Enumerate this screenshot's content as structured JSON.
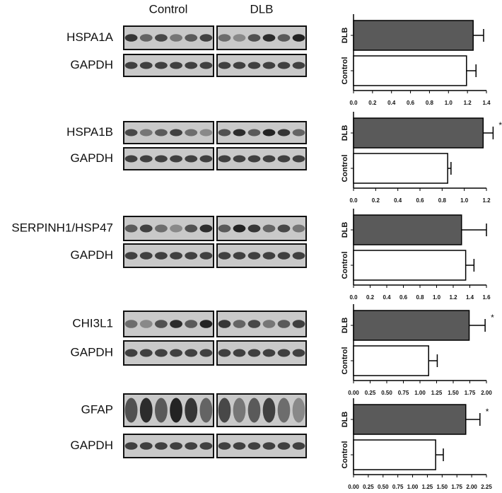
{
  "blots": {
    "groups": [
      "Control",
      "DLB"
    ],
    "rows": [
      "HSPA1A",
      "GAPDH",
      "HSPA1B",
      "GAPDH",
      "SERPINH1/HSP47",
      "GAPDH",
      "CHI3L1",
      "GAPDH",
      "GFAP",
      "GAPDH"
    ]
  },
  "chart_data": [
    {
      "type": "bar",
      "orientation": "horizontal",
      "categories": [
        "DLB",
        "Control"
      ],
      "values": [
        1.26,
        1.19
      ],
      "errors": [
        0.11,
        0.1
      ],
      "colors": [
        "#5a5a5a",
        "#ffffff"
      ],
      "xlim": [
        0,
        1.4
      ],
      "xticks": [
        {
          "value": 0,
          "label": "0.0"
        },
        0.2,
        0.4,
        0.6,
        0.8,
        {
          "value": 1,
          "label": "1.0"
        },
        1.2,
        1.4
      ]
    },
    {
      "type": "bar",
      "orientation": "horizontal",
      "categories": [
        "DLB",
        "Control"
      ],
      "values": [
        1.17,
        0.85
      ],
      "errors": [
        0.09,
        0.03
      ],
      "colors": [
        "#5a5a5a",
        "#ffffff"
      ],
      "annotation": "*",
      "xlim": [
        0,
        1.2
      ],
      "xticks": [
        {
          "value": 0,
          "label": "0.0"
        },
        0.2,
        0.4,
        0.6,
        0.8,
        {
          "value": 1,
          "label": "1.0"
        },
        1.2
      ]
    },
    {
      "type": "bar",
      "orientation": "horizontal",
      "categories": [
        "DLB",
        "Control"
      ],
      "values": [
        1.3,
        1.35
      ],
      "errors": [
        0.3,
        0.1
      ],
      "colors": [
        "#5a5a5a",
        "#ffffff"
      ],
      "xlim": [
        0,
        1.6
      ],
      "xticks": [
        {
          "value": 0,
          "label": "0.0"
        },
        0.2,
        0.4,
        0.6,
        0.8,
        {
          "value": 1,
          "label": "1.0"
        },
        1.2,
        1.4,
        1.6
      ]
    },
    {
      "type": "bar",
      "orientation": "horizontal",
      "categories": [
        "DLB",
        "Control"
      ],
      "values": [
        1.74,
        1.13
      ],
      "errors": [
        0.24,
        0.13
      ],
      "colors": [
        "#5a5a5a",
        "#ffffff"
      ],
      "annotation": "*",
      "xlim": [
        0,
        2
      ],
      "xticks": [
        {
          "value": 0,
          "label": "0.00"
        },
        0.25,
        {
          "value": 0.5,
          "label": "0.50"
        },
        0.75,
        {
          "value": 1,
          "label": "1.00"
        },
        1.25,
        {
          "value": 1.5,
          "label": "1.50"
        },
        1.75,
        {
          "value": 2,
          "label": "2.00"
        }
      ]
    },
    {
      "type": "bar",
      "orientation": "horizontal",
      "categories": [
        "DLB",
        "Control"
      ],
      "values": [
        1.9,
        1.39
      ],
      "errors": [
        0.24,
        0.13
      ],
      "colors": [
        "#5a5a5a",
        "#ffffff"
      ],
      "annotation": "*",
      "xlim": [
        0,
        2.25
      ],
      "xticks": [
        {
          "value": 0,
          "label": "0.00"
        },
        0.25,
        {
          "value": 0.5,
          "label": "0.50"
        },
        0.75,
        {
          "value": 1,
          "label": "1.00"
        },
        1.25,
        {
          "value": 1.5,
          "label": "1.50"
        },
        1.75,
        {
          "value": 2,
          "label": "2.00"
        },
        2.25
      ]
    }
  ]
}
